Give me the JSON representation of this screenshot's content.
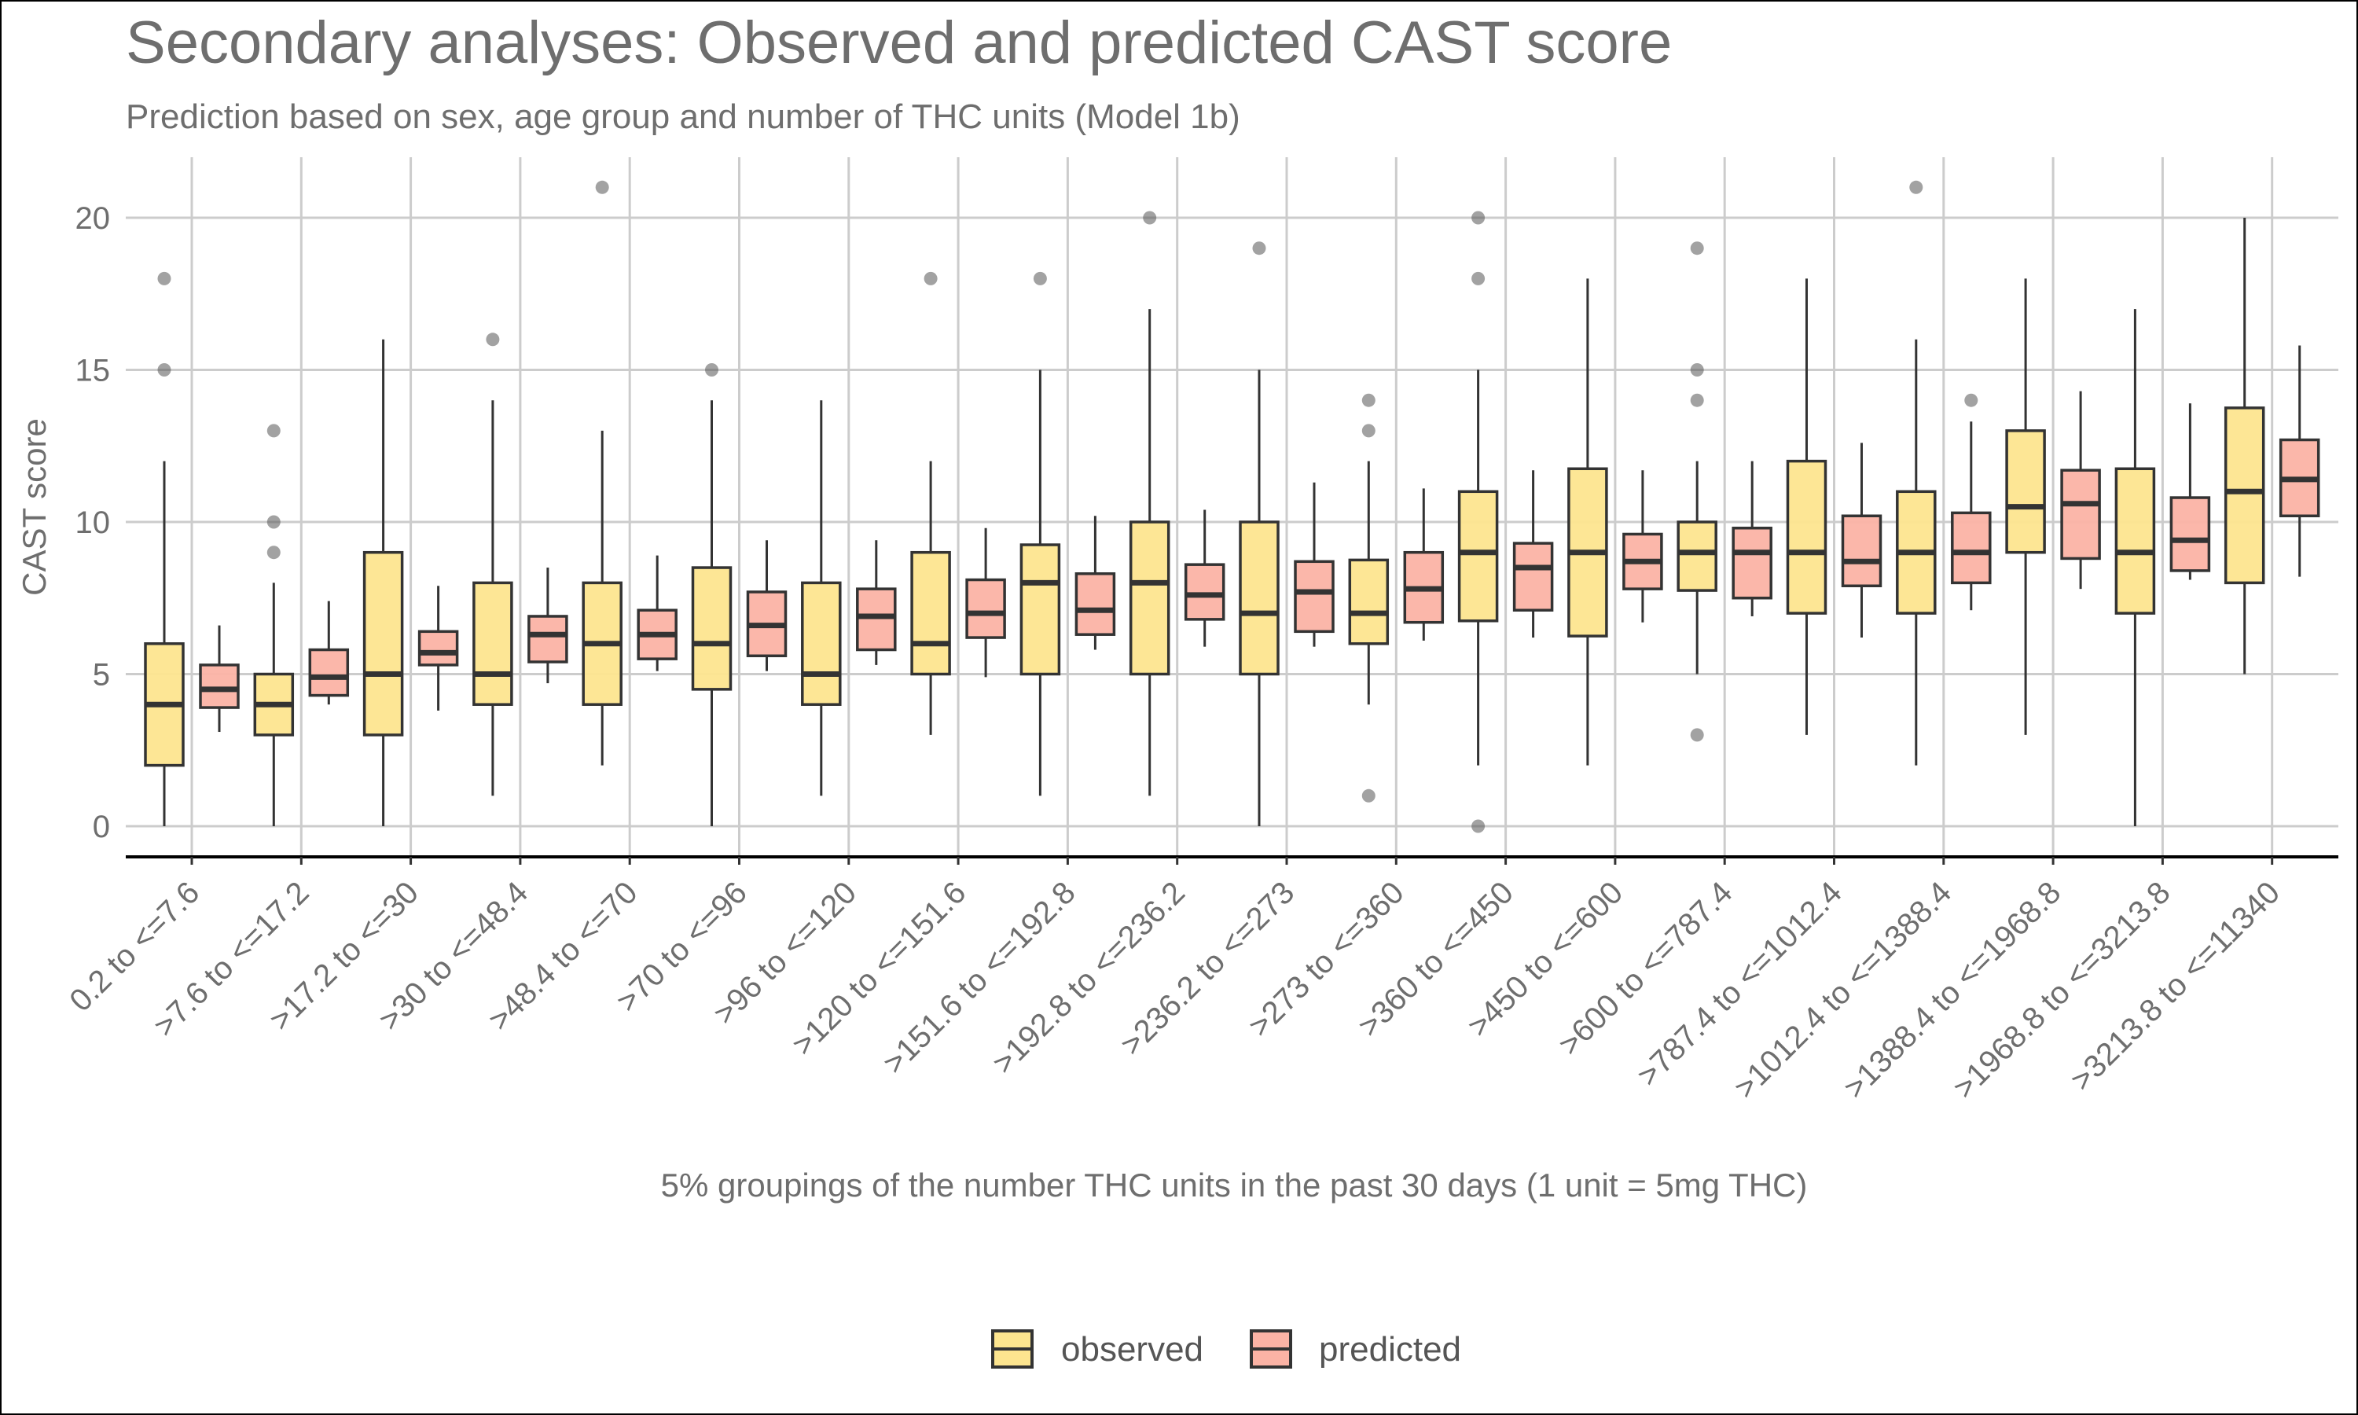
{
  "chart_data": {
    "type": "boxplot",
    "title": "Secondary analyses: Observed and predicted CAST score",
    "subtitle": "Prediction based on sex, age group and number of THC units (Model 1b)",
    "xlabel": "5% groupings of the number THC units in the past 30 days (1 unit = 5mg THC)",
    "ylabel": "CAST score",
    "ylim": [
      -1,
      22
    ],
    "yticks": [
      0,
      5,
      10,
      15,
      20
    ],
    "grid": true,
    "legend_position": "bottom",
    "colors": {
      "observed": "#fde58f",
      "predicted": "#fbb3a5",
      "outline": "#333333"
    },
    "categories": [
      "0.2 to <=7.6",
      ">7.6 to <=17.2",
      ">17.2 to <=30",
      ">30 to <=48.4",
      ">48.4 to <=70",
      ">70 to <=96",
      ">96 to <=120",
      ">120 to <=151.6",
      ">151.6 to <=192.8",
      ">192.8 to <=236.2",
      ">236.2 to <=273",
      ">273 to <=360",
      ">360 to <=450",
      ">450 to <=600",
      ">600 to <=787.4",
      ">787.4 to <=1012.4",
      ">1012.4 to <=1388.4",
      ">1388.4 to <=1968.8",
      ">1968.8 to <=3213.8",
      ">3213.8 to <=11340"
    ],
    "series": [
      {
        "name": "observed",
        "boxes": [
          {
            "min": 0,
            "q1": 2,
            "median": 4,
            "q3": 6,
            "max": 12,
            "outliers": [
              15,
              18
            ]
          },
          {
            "min": 0,
            "q1": 3,
            "median": 4,
            "q3": 5,
            "max": 8,
            "outliers": [
              9,
              10,
              13
            ]
          },
          {
            "min": 0,
            "q1": 3,
            "median": 5,
            "q3": 9,
            "max": 16,
            "outliers": []
          },
          {
            "min": 1,
            "q1": 4,
            "median": 5,
            "q3": 8,
            "max": 14,
            "outliers": [
              16
            ]
          },
          {
            "min": 2,
            "q1": 4,
            "median": 6,
            "q3": 8,
            "max": 13,
            "outliers": [
              21
            ]
          },
          {
            "min": 0,
            "q1": 4.5,
            "median": 6,
            "q3": 8.5,
            "max": 14,
            "outliers": [
              15
            ]
          },
          {
            "min": 1,
            "q1": 4,
            "median": 5,
            "q3": 8,
            "max": 14,
            "outliers": []
          },
          {
            "min": 3,
            "q1": 5,
            "median": 6,
            "q3": 9,
            "max": 12,
            "outliers": [
              18
            ]
          },
          {
            "min": 1,
            "q1": 5,
            "median": 8,
            "q3": 9.25,
            "max": 15,
            "outliers": [
              18
            ]
          },
          {
            "min": 1,
            "q1": 5,
            "median": 8,
            "q3": 10,
            "max": 17,
            "outliers": [
              20
            ]
          },
          {
            "min": 0,
            "q1": 5,
            "median": 7,
            "q3": 10,
            "max": 15,
            "outliers": [
              19
            ]
          },
          {
            "min": 4,
            "q1": 6,
            "median": 7,
            "q3": 8.75,
            "max": 12,
            "outliers": [
              1,
              13,
              14
            ]
          },
          {
            "min": 2,
            "q1": 6.75,
            "median": 9,
            "q3": 11,
            "max": 15,
            "outliers": [
              0,
              18,
              20
            ]
          },
          {
            "min": 2,
            "q1": 6.25,
            "median": 9,
            "q3": 11.75,
            "max": 18,
            "outliers": []
          },
          {
            "min": 5,
            "q1": 7.75,
            "median": 9,
            "q3": 10,
            "max": 12,
            "outliers": [
              3,
              14,
              15,
              19
            ]
          },
          {
            "min": 3,
            "q1": 7,
            "median": 9,
            "q3": 12,
            "max": 18,
            "outliers": []
          },
          {
            "min": 2,
            "q1": 7,
            "median": 9,
            "q3": 11,
            "max": 16,
            "outliers": [
              21
            ]
          },
          {
            "min": 3,
            "q1": 9,
            "median": 10.5,
            "q3": 13,
            "max": 18,
            "outliers": []
          },
          {
            "min": 0,
            "q1": 7,
            "median": 9,
            "q3": 11.75,
            "max": 17,
            "outliers": []
          },
          {
            "min": 5,
            "q1": 8,
            "median": 11,
            "q3": 13.75,
            "max": 20,
            "outliers": []
          }
        ]
      },
      {
        "name": "predicted",
        "boxes": [
          {
            "min": 3.1,
            "q1": 3.9,
            "median": 4.5,
            "q3": 5.3,
            "max": 6.6,
            "outliers": []
          },
          {
            "min": 4.0,
            "q1": 4.3,
            "median": 4.9,
            "q3": 5.8,
            "max": 7.4,
            "outliers": []
          },
          {
            "min": 3.8,
            "q1": 5.3,
            "median": 5.7,
            "q3": 6.4,
            "max": 7.9,
            "outliers": []
          },
          {
            "min": 4.7,
            "q1": 5.4,
            "median": 6.3,
            "q3": 6.9,
            "max": 8.5,
            "outliers": []
          },
          {
            "min": 5.1,
            "q1": 5.5,
            "median": 6.3,
            "q3": 7.1,
            "max": 8.9,
            "outliers": []
          },
          {
            "min": 5.1,
            "q1": 5.6,
            "median": 6.6,
            "q3": 7.7,
            "max": 9.4,
            "outliers": []
          },
          {
            "min": 5.3,
            "q1": 5.8,
            "median": 6.9,
            "q3": 7.8,
            "max": 9.4,
            "outliers": []
          },
          {
            "min": 4.9,
            "q1": 6.2,
            "median": 7.0,
            "q3": 8.1,
            "max": 9.8,
            "outliers": []
          },
          {
            "min": 5.8,
            "q1": 6.3,
            "median": 7.1,
            "q3": 8.3,
            "max": 10.2,
            "outliers": []
          },
          {
            "min": 5.9,
            "q1": 6.8,
            "median": 7.6,
            "q3": 8.6,
            "max": 10.4,
            "outliers": []
          },
          {
            "min": 5.9,
            "q1": 6.4,
            "median": 7.7,
            "q3": 8.7,
            "max": 11.3,
            "outliers": []
          },
          {
            "min": 6.1,
            "q1": 6.7,
            "median": 7.8,
            "q3": 9.0,
            "max": 11.1,
            "outliers": []
          },
          {
            "min": 6.2,
            "q1": 7.1,
            "median": 8.5,
            "q3": 9.3,
            "max": 11.7,
            "outliers": []
          },
          {
            "min": 6.7,
            "q1": 7.8,
            "median": 8.7,
            "q3": 9.6,
            "max": 11.7,
            "outliers": []
          },
          {
            "min": 6.9,
            "q1": 7.5,
            "median": 9.0,
            "q3": 9.8,
            "max": 12.0,
            "outliers": []
          },
          {
            "min": 6.2,
            "q1": 7.9,
            "median": 8.7,
            "q3": 10.2,
            "max": 12.6,
            "outliers": []
          },
          {
            "min": 7.1,
            "q1": 8.0,
            "median": 9.0,
            "q3": 10.3,
            "max": 13.3,
            "outliers": [
              14
            ]
          },
          {
            "min": 7.8,
            "q1": 8.8,
            "median": 10.6,
            "q3": 11.7,
            "max": 14.3,
            "outliers": []
          },
          {
            "min": 8.1,
            "q1": 8.4,
            "median": 9.4,
            "q3": 10.8,
            "max": 13.9,
            "outliers": []
          },
          {
            "min": 8.2,
            "q1": 10.2,
            "median": 11.4,
            "q3": 12.7,
            "max": 15.8,
            "outliers": []
          }
        ]
      }
    ]
  }
}
